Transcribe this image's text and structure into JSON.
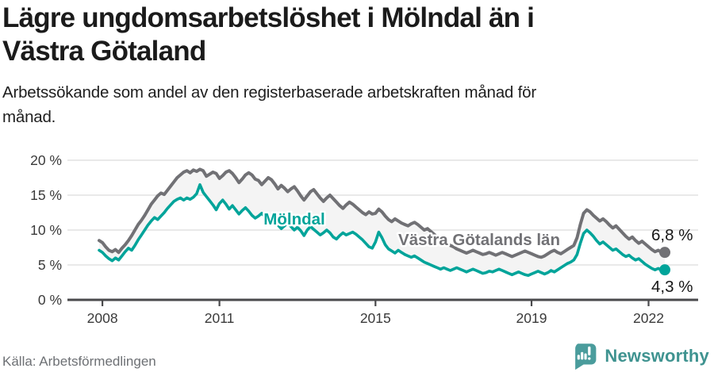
{
  "header": {
    "title": "Lägre ungdomsarbetslöshet i Mölndal än i\nVästra Götaland",
    "subtitle": "Arbetssökande som andel av den registerbaserade arbetskraften månad för\nmånad."
  },
  "footer": {
    "source": "Källa: Arbetsförmedlingen",
    "brand": "Newsworthy"
  },
  "colors": {
    "line_region": "#717175",
    "line_municipality": "#00a49a",
    "between_fill": "#f4f4f4",
    "gridline": "#dcdcdc",
    "axis": "#4a4a4c",
    "axis_text": "#3a3a3a",
    "end_label_text": "#161616",
    "brand_teal": "#4a9c9c"
  },
  "chart_data": {
    "type": "line",
    "title": "Lägre ungdomsarbetslöshet i Mölndal än i Västra Götaland",
    "xlabel": "",
    "ylabel": "Arbetssökande som andel av den registerbaserade arbetskraften",
    "x_start": "2007-12",
    "frequency": "monthly",
    "x_ticks": [
      2008,
      2011,
      2015,
      2019,
      2022
    ],
    "ylim": [
      0,
      20
    ],
    "y_ticks": [
      0,
      5,
      10,
      15,
      20
    ],
    "y_tick_suffix": " %",
    "grid": true,
    "legend_position": "inline-labels",
    "series": [
      {
        "name": "Västra Götalands län",
        "color": "#717175",
        "end_label": "6,8 %",
        "end_value": 6.8,
        "values": [
          8.5,
          8.2,
          7.6,
          7.1,
          6.9,
          7.2,
          6.8,
          7.4,
          7.9,
          8.5,
          9.2,
          10.0,
          10.8,
          11.4,
          12.1,
          12.9,
          13.7,
          14.3,
          14.9,
          15.3,
          15.1,
          15.7,
          16.3,
          16.9,
          17.5,
          17.9,
          18.3,
          18.5,
          18.2,
          18.6,
          18.4,
          18.7,
          18.5,
          17.7,
          18.0,
          18.3,
          18.1,
          17.4,
          17.8,
          18.3,
          18.5,
          18.1,
          17.5,
          16.8,
          17.3,
          17.9,
          18.2,
          17.9,
          17.3,
          17.1,
          16.5,
          17.0,
          17.5,
          17.2,
          16.6,
          15.9,
          16.4,
          16.0,
          15.5,
          15.9,
          16.2,
          15.6,
          14.9,
          14.3,
          14.9,
          15.5,
          15.8,
          15.2,
          14.6,
          14.1,
          14.6,
          15.0,
          14.5,
          14.0,
          13.5,
          13.1,
          13.6,
          14.0,
          13.7,
          13.3,
          12.9,
          12.5,
          12.2,
          12.6,
          12.3,
          12.4,
          13.0,
          12.6,
          12.0,
          11.5,
          11.2,
          11.6,
          11.3,
          11.0,
          10.8,
          10.6,
          10.9,
          11.1,
          10.8,
          10.4,
          10.0,
          10.2,
          9.8,
          9.4,
          9.0,
          8.7,
          8.4,
          8.1,
          7.8,
          7.6,
          7.3,
          7.1,
          6.9,
          6.7,
          6.9,
          7.1,
          6.9,
          6.7,
          6.5,
          6.6,
          6.8,
          6.6,
          6.4,
          6.6,
          6.8,
          6.6,
          6.4,
          6.2,
          6.4,
          6.6,
          6.8,
          7.0,
          6.8,
          6.6,
          6.4,
          6.2,
          6.1,
          6.3,
          6.6,
          6.9,
          7.1,
          6.8,
          6.6,
          6.9,
          7.2,
          7.5,
          7.8,
          8.9,
          10.8,
          12.4,
          12.9,
          12.6,
          12.1,
          11.7,
          11.3,
          11.6,
          11.2,
          10.7,
          10.3,
          10.6,
          10.1,
          9.6,
          9.1,
          8.7,
          9.0,
          8.5,
          8.1,
          8.4,
          8.0,
          7.6,
          7.2,
          6.9,
          7.1,
          6.8,
          6.8
        ]
      },
      {
        "name": "Mölndal",
        "color": "#00a49a",
        "end_label": "4,3 %",
        "end_value": 4.3,
        "values": [
          7.1,
          6.8,
          6.3,
          5.9,
          5.6,
          6.0,
          5.7,
          6.3,
          6.9,
          7.4,
          7.1,
          7.8,
          8.6,
          9.3,
          10.0,
          10.7,
          11.3,
          11.8,
          11.5,
          12.0,
          12.5,
          13.1,
          13.6,
          14.1,
          14.4,
          14.6,
          14.3,
          14.6,
          14.4,
          14.7,
          15.2,
          16.5,
          15.4,
          14.8,
          14.2,
          13.6,
          12.9,
          13.8,
          14.3,
          13.7,
          13.0,
          13.5,
          12.9,
          12.3,
          12.8,
          13.2,
          12.7,
          12.1,
          11.7,
          12.0,
          12.4,
          11.9,
          11.4,
          11.8,
          11.2,
          10.7,
          10.2,
          10.6,
          11.0,
          10.5,
          10.0,
          10.4,
          9.9,
          9.2,
          10.0,
          10.5,
          10.1,
          9.7,
          9.3,
          9.6,
          10.0,
          9.6,
          9.0,
          8.7,
          9.2,
          9.6,
          9.3,
          9.5,
          9.7,
          9.4,
          9.0,
          8.6,
          8.1,
          7.6,
          7.4,
          8.3,
          9.7,
          8.9,
          7.9,
          7.3,
          7.0,
          6.7,
          7.1,
          6.8,
          6.5,
          6.3,
          6.1,
          6.3,
          6.0,
          5.7,
          5.4,
          5.2,
          5.0,
          4.8,
          4.6,
          4.4,
          4.6,
          4.4,
          4.2,
          4.4,
          4.6,
          4.4,
          4.2,
          4.0,
          4.2,
          4.4,
          4.2,
          4.0,
          3.8,
          3.9,
          4.1,
          4.0,
          4.2,
          4.4,
          4.2,
          4.0,
          3.8,
          3.6,
          3.8,
          4.0,
          3.8,
          3.6,
          3.5,
          3.7,
          3.9,
          4.1,
          3.9,
          3.7,
          3.9,
          4.2,
          4.0,
          4.3,
          4.6,
          4.9,
          5.2,
          5.4,
          5.7,
          6.5,
          8.1,
          9.5,
          10.0,
          9.6,
          9.1,
          8.5,
          8.0,
          8.3,
          7.9,
          7.5,
          7.1,
          7.3,
          6.9,
          6.5,
          6.2,
          6.4,
          6.0,
          5.7,
          5.9,
          5.5,
          5.1,
          4.8,
          4.5,
          4.3,
          4.5,
          4.2,
          4.3
        ]
      }
    ]
  }
}
